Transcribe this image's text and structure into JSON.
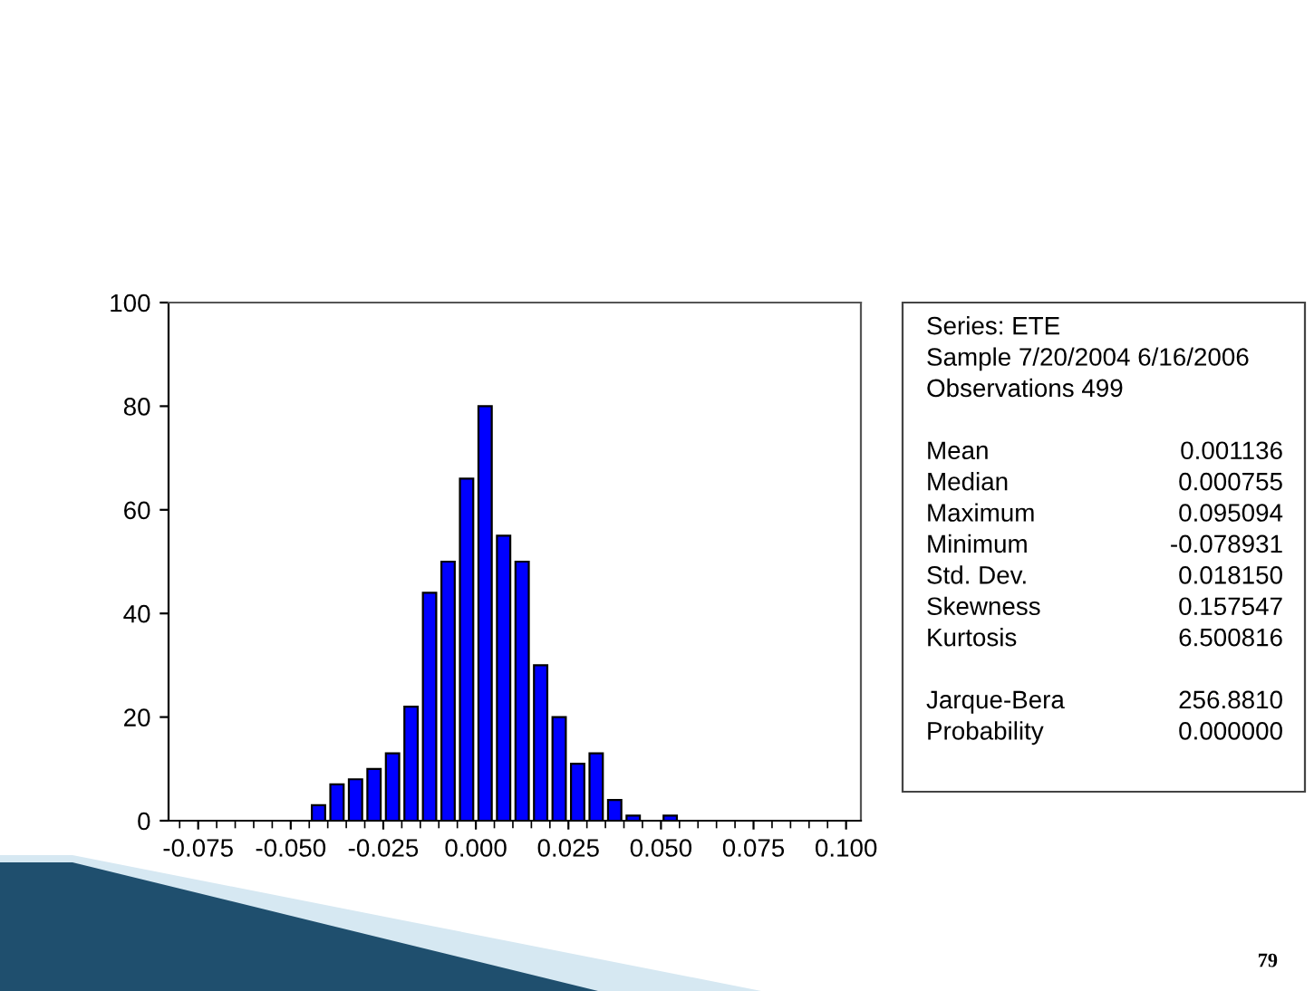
{
  "chart_data": {
    "type": "histogram",
    "bins": [
      -0.045,
      -0.04,
      -0.035,
      -0.03,
      -0.025,
      -0.02,
      -0.015,
      -0.01,
      -0.005,
      0.0,
      0.005,
      0.01,
      0.015,
      0.02,
      0.025,
      0.03,
      0.035,
      0.04,
      0.045,
      0.05,
      0.055
    ],
    "values": [
      3,
      7,
      8,
      10,
      13,
      22,
      44,
      50,
      66,
      80,
      55,
      50,
      30,
      20,
      11,
      13,
      4,
      1,
      0,
      1
    ],
    "color": "#0000ff",
    "xlim": [
      -0.083,
      0.104
    ],
    "xticks": [
      {
        "value": -0.075,
        "label": "-0.075"
      },
      {
        "value": -0.05,
        "label": "-0.050"
      },
      {
        "value": -0.025,
        "label": "-0.025"
      },
      {
        "value": 0,
        "label": "0.000"
      },
      {
        "value": 0.025,
        "label": "0.025"
      },
      {
        "value": 0.05,
        "label": "0.050"
      },
      {
        "value": 0.075,
        "label": "0.075"
      },
      {
        "value": 0.1,
        "label": "0.100"
      }
    ],
    "ylim": [
      0,
      100
    ],
    "yticks": [
      0,
      20,
      40,
      60,
      80,
      100
    ],
    "grid": false,
    "annotations": [
      "Series: ETE",
      "Sample 7/20/2004 6/16/2006",
      "Observations 499",
      "Mean",
      "0.001136",
      "Median",
      "0.000755",
      "Maximum",
      "0.095094",
      "Minimum",
      "-0.078931",
      "Std. Dev.",
      "0.018150",
      "Skewness",
      "0.157547",
      "Kurtosis",
      "6.500816",
      "Jarque-Bera",
      "256.8810",
      "Probability",
      "0.000000",
      "79"
    ]
  }
}
